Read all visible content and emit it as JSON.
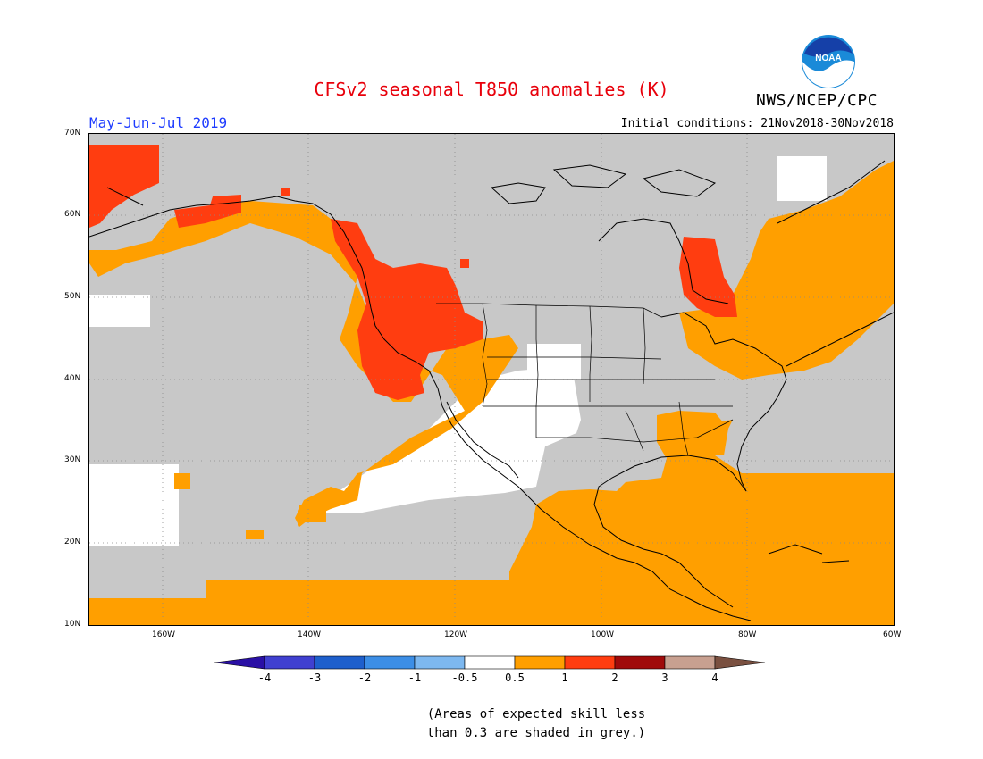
{
  "header": {
    "title": "CFSv2 seasonal T850 anomalies (K)",
    "agency": "NWS/NCEP/CPC",
    "season": "May-Jun-Jul 2019",
    "initial_conditions": "Initial conditions: 21Nov2018-30Nov2018",
    "logo_text": "NOAA"
  },
  "map": {
    "lon_labels": [
      "160W",
      "140W",
      "120W",
      "100W",
      "80W",
      "60W"
    ],
    "lat_labels": [
      "70N",
      "60N",
      "50N",
      "40N",
      "30N",
      "20N",
      "10N"
    ],
    "lon_range": [
      -170,
      -60
    ],
    "lat_range": [
      10,
      70
    ]
  },
  "legend": {
    "labels": [
      "-4",
      "-3",
      "-2",
      "-1",
      "-0.5",
      "0.5",
      "1",
      "2",
      "3",
      "4"
    ],
    "colors": [
      "#2a10a5",
      "#4040d0",
      "#1e5fcc",
      "#3c8ee6",
      "#7db8f0",
      "#ffffff",
      "#ff9f00",
      "#ff3d10",
      "#a00a0a",
      "#c8a090",
      "#7a5040"
    ]
  },
  "colors": {
    "grey_low_skill": "#c8c8c8",
    "anomaly_0_5_1": "#ff9f00",
    "anomaly_1_2": "#ff3d10",
    "neutral": "#ffffff"
  },
  "footnote": {
    "line1": "(Areas of expected skill less",
    "line2": "than 0.3 are shaded in grey.)"
  }
}
